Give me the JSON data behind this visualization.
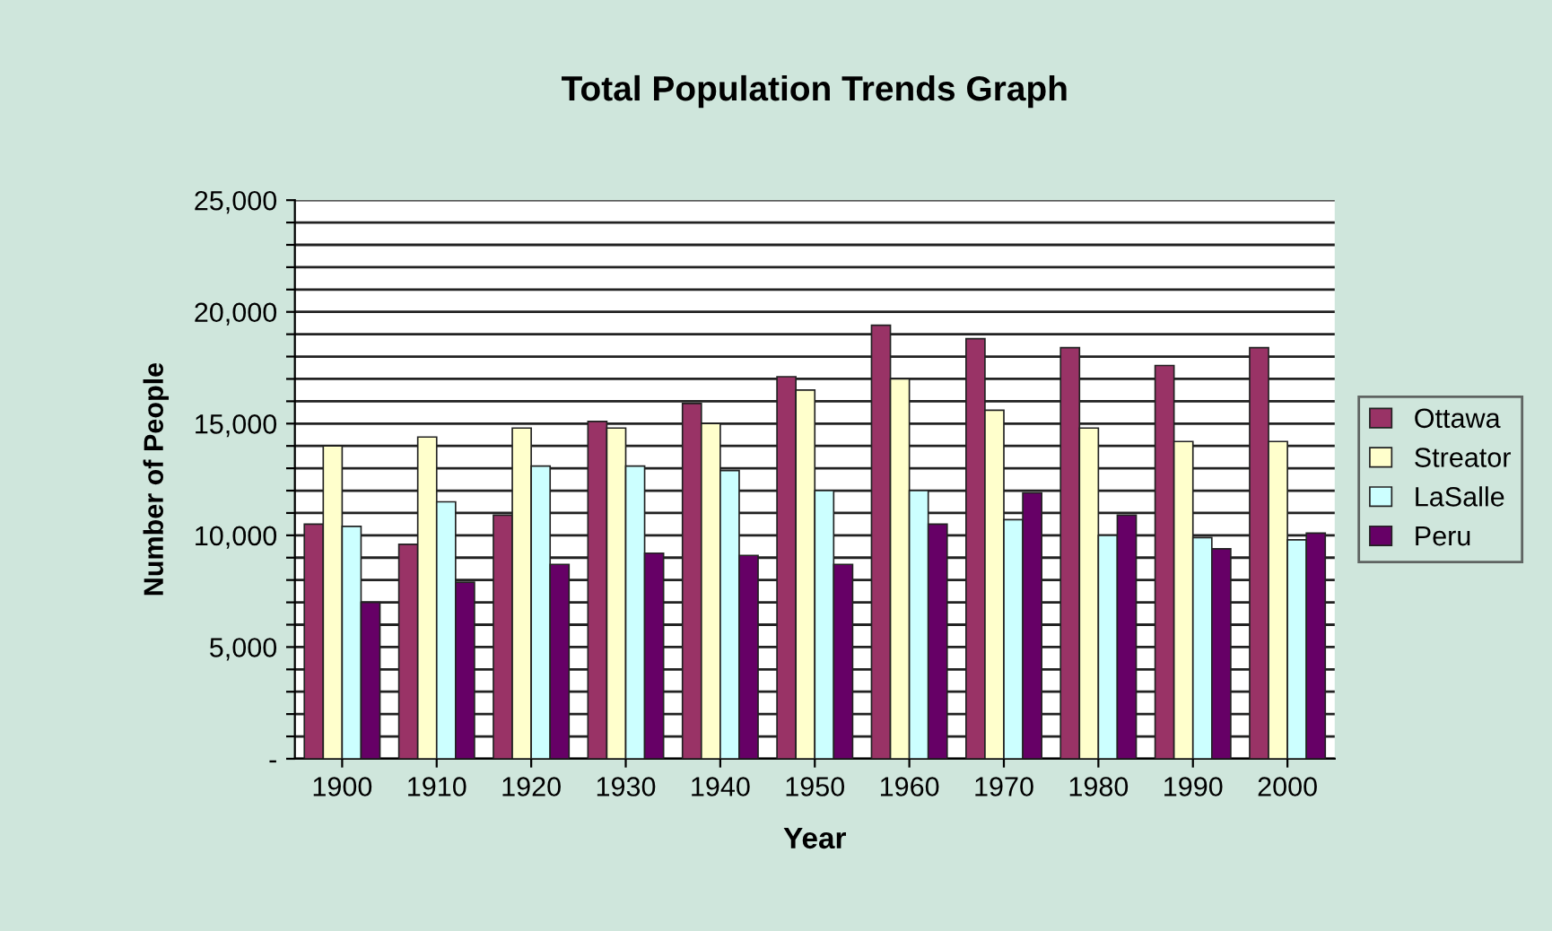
{
  "chart_data": {
    "type": "bar",
    "title": "Total Population Trends Graph",
    "xlabel": "Year",
    "ylabel": "Number of People",
    "categories": [
      "1900",
      "1910",
      "1920",
      "1930",
      "1940",
      "1950",
      "1960",
      "1970",
      "1980",
      "1990",
      "2000"
    ],
    "series": [
      {
        "name": "Ottawa",
        "color": "#993366",
        "values": [
          10500,
          9600,
          10900,
          15100,
          15900,
          17100,
          19400,
          18800,
          18400,
          17600,
          18400
        ]
      },
      {
        "name": "Streator",
        "color": "#ffffcc",
        "values": [
          14000,
          14400,
          14800,
          14800,
          15000,
          16500,
          17000,
          15600,
          14800,
          14200,
          14200
        ]
      },
      {
        "name": "LaSalle",
        "color": "#ccffff",
        "values": [
          10400,
          11500,
          13100,
          13100,
          12900,
          12000,
          12000,
          10700,
          10000,
          9900,
          9800
        ]
      },
      {
        "name": "Peru",
        "color": "#660066",
        "values": [
          7000,
          7900,
          8700,
          9200,
          9100,
          8700,
          10500,
          11900,
          10900,
          9400,
          10100
        ]
      }
    ],
    "ylim": [
      0,
      25000
    ],
    "yticks": [
      {
        "value": 0,
        "label": "-"
      },
      {
        "value": 1000,
        "label": null
      },
      {
        "value": 2000,
        "label": null
      },
      {
        "value": 3000,
        "label": null
      },
      {
        "value": 4000,
        "label": null
      },
      {
        "value": 5000,
        "label": "5,000"
      },
      {
        "value": 6000,
        "label": null
      },
      {
        "value": 7000,
        "label": null
      },
      {
        "value": 8000,
        "label": null
      },
      {
        "value": 9000,
        "label": null
      },
      {
        "value": 10000,
        "label": "10,000"
      },
      {
        "value": 11000,
        "label": null
      },
      {
        "value": 12000,
        "label": null
      },
      {
        "value": 13000,
        "label": null
      },
      {
        "value": 14000,
        "label": null
      },
      {
        "value": 15000,
        "label": "15,000"
      },
      {
        "value": 16000,
        "label": null
      },
      {
        "value": 17000,
        "label": null
      },
      {
        "value": 18000,
        "label": null
      },
      {
        "value": 19000,
        "label": null
      },
      {
        "value": 20000,
        "label": "20,000"
      },
      {
        "value": 21000,
        "label": null
      },
      {
        "value": 22000,
        "label": null
      },
      {
        "value": 23000,
        "label": null
      },
      {
        "value": 24000,
        "label": null
      },
      {
        "value": 25000,
        "label": "25,000"
      }
    ],
    "grid": "y",
    "legend": "right"
  }
}
